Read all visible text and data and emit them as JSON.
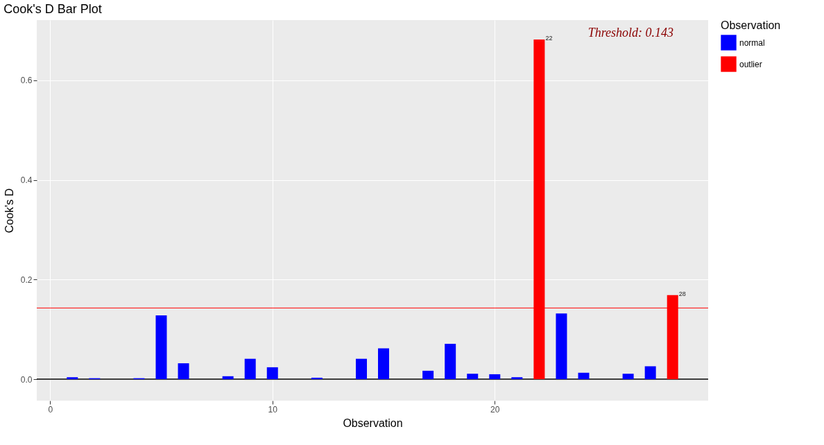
{
  "chart_data": {
    "type": "bar",
    "title": "Cook's D Bar Plot",
    "xlabel": "Observation",
    "ylabel": "Cook's D",
    "legend_title": "Observation",
    "series": [
      {
        "name": "normal",
        "color": "#0000ff",
        "x": [
          1,
          2,
          4,
          5,
          6,
          8,
          9,
          10,
          12,
          14,
          15,
          17,
          18,
          19,
          20,
          21,
          23,
          24,
          26,
          27
        ],
        "values": [
          0.004,
          0.002,
          0.002,
          0.128,
          0.032,
          0.006,
          0.041,
          0.024,
          0.003,
          0.041,
          0.062,
          0.017,
          0.071,
          0.011,
          0.01,
          0.004,
          0.132,
          0.013,
          0.011,
          0.026
        ]
      },
      {
        "name": "outlier",
        "color": "#ff0000",
        "x": [
          22,
          28
        ],
        "values": [
          0.682,
          0.169
        ]
      }
    ],
    "xlim": [
      -0.6,
      29.6
    ],
    "xticks": [
      0,
      10,
      20
    ],
    "ylim": [
      -0.043,
      0.721
    ],
    "yticks": [
      {
        "value": 0,
        "label": "0.0"
      },
      {
        "value": 0.2,
        "label": "0.2"
      },
      {
        "value": 0.4,
        "label": "0.4"
      },
      {
        "value": 0.6,
        "label": "0.6"
      }
    ],
    "ref_lines": [
      {
        "axis": "y",
        "value": 0.143,
        "color": "#ff0000"
      },
      {
        "axis": "y",
        "value": 0,
        "color": "#000000"
      }
    ],
    "annotations": [
      "Threshold: 0.143",
      {
        "text": "22",
        "x": 22,
        "y": 0.682
      },
      {
        "text": "28",
        "x": 28,
        "y": 0.169
      }
    ],
    "grid": true,
    "legend": "right"
  }
}
